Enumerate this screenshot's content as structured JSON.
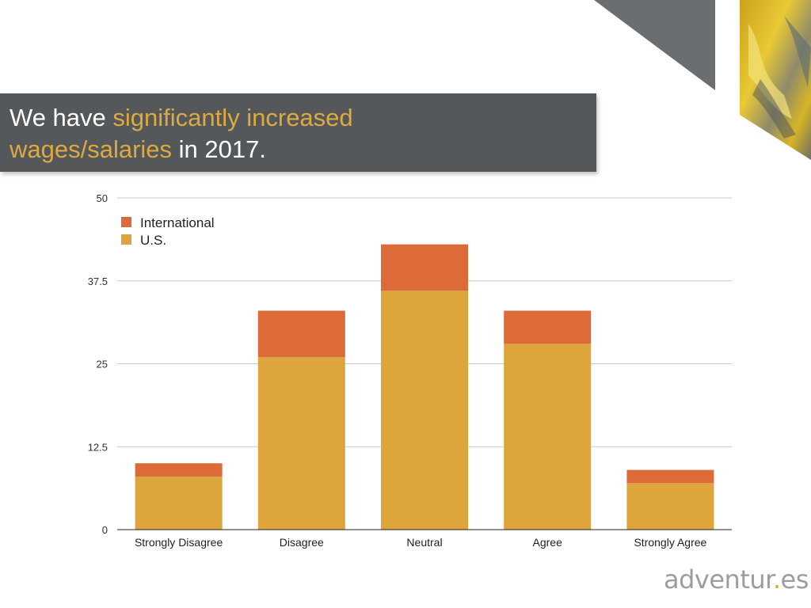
{
  "slide": {
    "title_parts": [
      "We have ",
      "significantly increased",
      " wages/salaries",
      " in 2017."
    ],
    "accent_color": "#deaa3f",
    "band_color": "#54585b"
  },
  "brand": {
    "name_part1": "adventur",
    "name_dot": ".",
    "name_part2": "es"
  },
  "chart_data": {
    "type": "bar",
    "stacked": true,
    "categories": [
      "Strongly Disagree",
      "Disagree",
      "Neutral",
      "Agree",
      "Strongly Agree"
    ],
    "series": [
      {
        "name": "U.S.",
        "color": "#dea53c",
        "values": [
          8,
          26,
          36,
          28,
          7
        ]
      },
      {
        "name": "International",
        "color": "#dc6b39",
        "values": [
          2,
          7,
          7,
          5,
          2
        ]
      }
    ],
    "legend_order": [
      "International",
      "U.S."
    ],
    "legend_position": "top-left",
    "yticks": [
      0,
      12.5,
      25,
      37.5,
      50
    ],
    "ytick_labels": [
      "0",
      "12.5",
      "25",
      "37.5",
      "50"
    ],
    "ylim": [
      0,
      50
    ],
    "grid": true,
    "title": "",
    "xlabel": "",
    "ylabel": ""
  }
}
